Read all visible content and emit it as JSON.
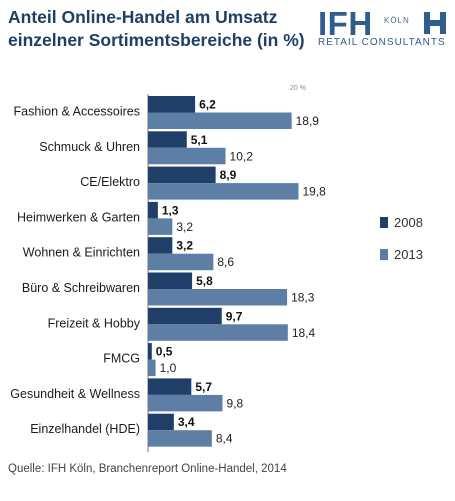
{
  "header": {
    "title_line1": "Anteil Online-Handel am Umsatz",
    "title_line2": "einzelner Sortimentsbereiche (in %)"
  },
  "logo": {
    "brand": "IFH",
    "city": "KÖLN",
    "subtitle": "RETAIL CONSULTANTS"
  },
  "source": "Quelle: IFH Köln, Branchenreport Online-Handel, 2014",
  "colors": {
    "title": "#1e3f66",
    "series_2008": "#1f3f68",
    "series_2013": "#5d7fa6"
  },
  "chart_data": {
    "type": "bar",
    "orientation": "horizontal",
    "categories": [
      "Fashion & Accessoires",
      "Schmuck & Uhren",
      "CE/Elektro",
      "Heimwerken & Garten",
      "Wohnen & Einrichten",
      "Büro & Schreibwaren",
      "Freizeit & Hobby",
      "FMCG",
      "Gesundheit & Wellness",
      "Einzelhandel (HDE)"
    ],
    "series": [
      {
        "name": "2008",
        "values": [
          6.2,
          5.1,
          8.9,
          1.3,
          3.2,
          5.8,
          9.7,
          0.5,
          5.7,
          3.4
        ],
        "labels": [
          "6,2",
          "5,1",
          "8,9",
          "1,3",
          "3,2",
          "5,8",
          "9,7",
          "0,5",
          "5,7",
          "3,4"
        ]
      },
      {
        "name": "2013",
        "values": [
          18.9,
          10.2,
          19.8,
          3.2,
          8.6,
          18.3,
          18.4,
          1.0,
          9.8,
          8.4
        ],
        "labels": [
          "18,9",
          "10,2",
          "19,8",
          "3,2",
          "8,6",
          "18,3",
          "18,4",
          "1,0",
          "9,8",
          "8,4"
        ]
      }
    ],
    "xlim": [
      0,
      20
    ],
    "x_tick_label": "20 %",
    "legend_position": "right",
    "grid": false
  }
}
